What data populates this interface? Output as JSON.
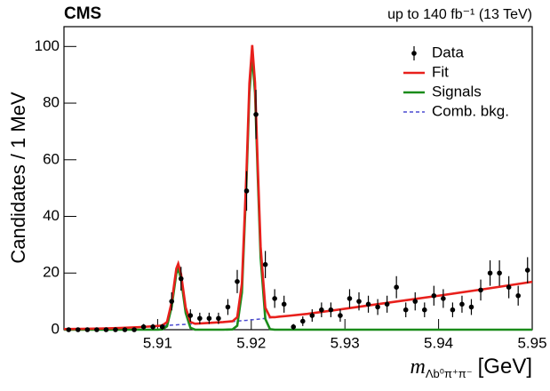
{
  "chart_data": {
    "type": "line",
    "title": "CMS",
    "subtitle": "up to 140 fb⁻¹ (13 TeV)",
    "y_label": "Candidates / 1 MeV",
    "x_label": {
      "symbol": "m",
      "subscript": "Λb⁰π⁺π⁻",
      "unit": "[GeV]"
    },
    "xlim": [
      5.9,
      5.95
    ],
    "ylim": [
      0,
      107
    ],
    "xticks": [
      5.91,
      5.92,
      5.93,
      5.94,
      5.95
    ],
    "yticks": [
      0,
      20,
      40,
      60,
      80,
      100
    ],
    "legend": "top-right",
    "series": [
      {
        "name": "Data",
        "style": "points",
        "color": "#000000",
        "x": [
          5.9005,
          5.9015,
          5.9025,
          5.9035,
          5.9045,
          5.9055,
          5.9065,
          5.9075,
          5.9085,
          5.9095,
          5.9105,
          5.9115,
          5.9125,
          5.9135,
          5.9145,
          5.9155,
          5.9165,
          5.9175,
          5.9185,
          5.9195,
          5.9205,
          5.9215,
          5.9225,
          5.9235,
          5.9245,
          5.9255,
          5.9265,
          5.9275,
          5.9285,
          5.9295,
          5.9305,
          5.9315,
          5.9325,
          5.9335,
          5.9345,
          5.9355,
          5.9365,
          5.9375,
          5.9385,
          5.9395,
          5.9405,
          5.9415,
          5.9425,
          5.9435,
          5.9445,
          5.9455,
          5.9465,
          5.9475,
          5.9485,
          5.9495
        ],
        "values": [
          0,
          0,
          0,
          0,
          0,
          0,
          0,
          0,
          1,
          1,
          1,
          10,
          18,
          5,
          4,
          4,
          4,
          8,
          17,
          49,
          76,
          23,
          11,
          9,
          1,
          3,
          5,
          7,
          7,
          5,
          11,
          10,
          9,
          8,
          9,
          15,
          7,
          10,
          7,
          12,
          11,
          7,
          9,
          8,
          14,
          20,
          20,
          15,
          12,
          21
        ],
        "errors": [
          0,
          0,
          0,
          0,
          0,
          0,
          0,
          0,
          1,
          1,
          1,
          3.2,
          4.2,
          2.2,
          2,
          2,
          2,
          2.8,
          4.1,
          7,
          8.7,
          4.8,
          3.3,
          3,
          1,
          1.7,
          2.2,
          2.6,
          2.6,
          2.2,
          3.3,
          3.2,
          3,
          2.8,
          3,
          3.9,
          2.6,
          3.2,
          2.6,
          3.5,
          3.3,
          2.6,
          3,
          2.8,
          3.7,
          4.5,
          4.5,
          3.9,
          3.5,
          4.6
        ]
      },
      {
        "name": "Fit",
        "style": "line",
        "color": "#e8201c",
        "x": [
          5.9,
          5.902,
          5.904,
          5.906,
          5.908,
          5.909,
          5.91,
          5.9105,
          5.911,
          5.9115,
          5.912,
          5.9122,
          5.9125,
          5.913,
          5.9135,
          5.914,
          5.915,
          5.916,
          5.917,
          5.918,
          5.9185,
          5.919,
          5.9195,
          5.9198,
          5.9201,
          5.9204,
          5.9207,
          5.921,
          5.9215,
          5.922,
          5.9225,
          5.923,
          5.924,
          5.926,
          5.93,
          5.935,
          5.94,
          5.945,
          5.95
        ],
        "values": [
          0.2,
          0.3,
          0.4,
          0.6,
          0.9,
          1.1,
          1.3,
          1.5,
          2.7,
          9.7,
          21.6,
          23.3,
          19.7,
          7.8,
          2.7,
          2.1,
          2.3,
          2.5,
          2.7,
          3.0,
          4.4,
          16.3,
          56.8,
          87.0,
          100.5,
          87.2,
          57.2,
          29.2,
          7.8,
          4.4,
          4.4,
          4.6,
          4.9,
          5.6,
          7.4,
          9.7,
          12.0,
          14.4,
          16.9
        ]
      },
      {
        "name": "Signals",
        "style": "line",
        "color": "#1a8c1a",
        "x": [
          5.9,
          5.902,
          5.904,
          5.906,
          5.908,
          5.909,
          5.91,
          5.9105,
          5.911,
          5.9115,
          5.912,
          5.9122,
          5.9125,
          5.913,
          5.9135,
          5.914,
          5.915,
          5.916,
          5.917,
          5.918,
          5.9185,
          5.919,
          5.9195,
          5.9198,
          5.9201,
          5.9204,
          5.9207,
          5.921,
          5.9215,
          5.922,
          5.9225,
          5.923,
          5.924,
          5.926,
          5.93,
          5.935,
          5.94,
          5.945,
          5.95
        ],
        "values": [
          0,
          0,
          0,
          0,
          0,
          0,
          0,
          0.1,
          1.2,
          8.1,
          19.9,
          21.5,
          17.9,
          5.9,
          0.7,
          0,
          0,
          0,
          0,
          0.1,
          1.4,
          13.1,
          53.5,
          83.6,
          97,
          83.6,
          53.5,
          25.4,
          3.8,
          0.2,
          0,
          0,
          0,
          0,
          0,
          0,
          0,
          0,
          0
        ]
      },
      {
        "name": "Comb. bkg.",
        "style": "dashed",
        "color": "#4a4ad0",
        "x": [
          5.9,
          5.902,
          5.904,
          5.906,
          5.908,
          5.909,
          5.91,
          5.9105,
          5.911,
          5.9115,
          5.912,
          5.9122,
          5.9125,
          5.913,
          5.9135,
          5.914,
          5.915,
          5.916,
          5.917,
          5.918,
          5.9185,
          5.919,
          5.9195,
          5.9198,
          5.9201,
          5.9204,
          5.9207,
          5.921,
          5.9215,
          5.922,
          5.9225,
          5.923,
          5.924,
          5.926,
          5.93,
          5.935,
          5.94,
          5.945,
          5.95
        ],
        "values": [
          0.2,
          0.3,
          0.4,
          0.6,
          0.9,
          1.1,
          1.3,
          1.4,
          1.5,
          1.6,
          1.7,
          1.75,
          1.8,
          1.9,
          2.0,
          2.1,
          2.3,
          2.5,
          2.7,
          2.9,
          3.0,
          3.2,
          3.3,
          3.4,
          3.5,
          3.6,
          3.7,
          3.8,
          4.0,
          4.2,
          4.4,
          4.6,
          4.9,
          5.6,
          7.4,
          9.7,
          12.0,
          14.4,
          16.9
        ]
      }
    ]
  }
}
